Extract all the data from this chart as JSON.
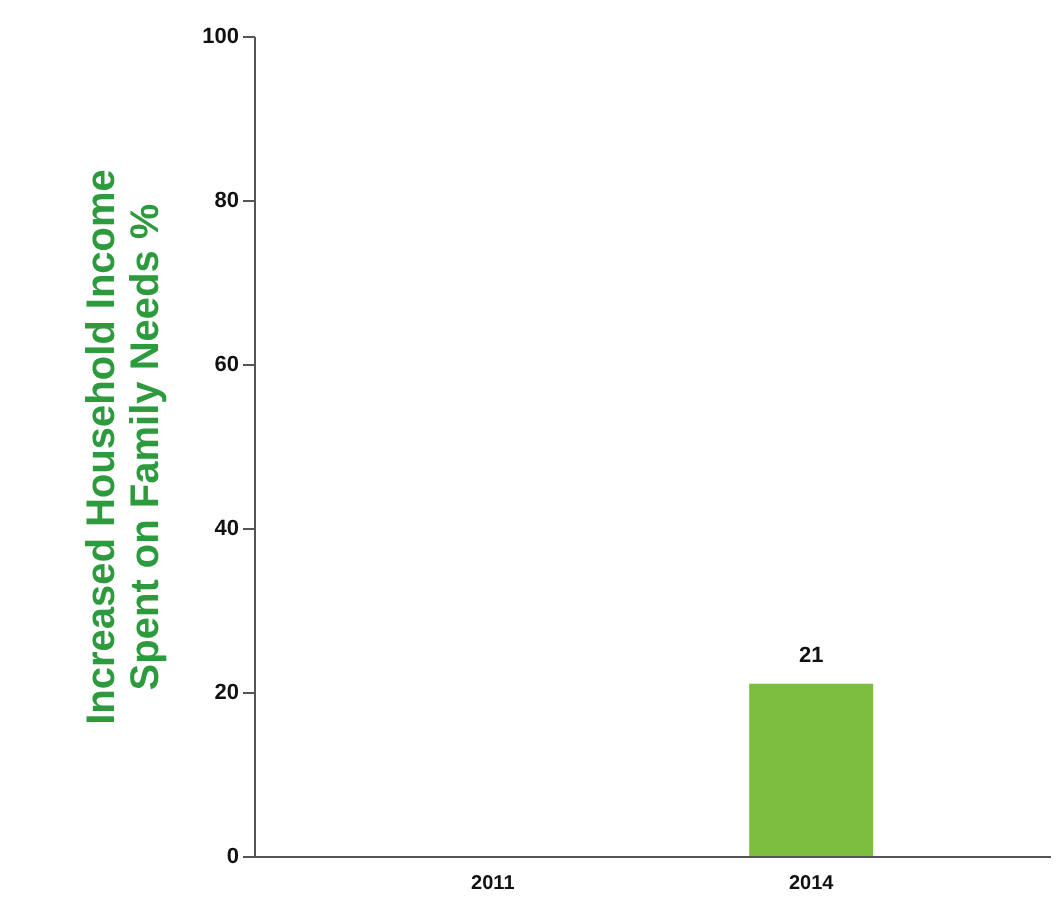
{
  "chart_data": {
    "type": "bar",
    "ylabel": "Increased Household Income\nSpent on Family Needs %",
    "categories": [
      "2011",
      "2014"
    ],
    "values": [
      null,
      21
    ],
    "color": "#7dbd3f",
    "ylim": [
      0,
      100
    ],
    "yticks": [
      0,
      20,
      40,
      60,
      80,
      100
    ],
    "data_labels": true
  }
}
